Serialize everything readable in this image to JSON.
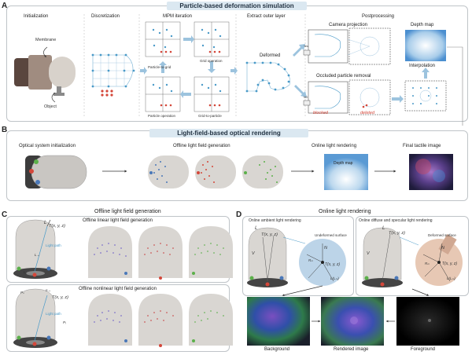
{
  "panels": {
    "a": {
      "letter": "A",
      "title": "Particle-based deformation simulation",
      "steps": [
        "Initialization",
        "Discretization",
        "MPM iteration",
        "Extract outer layer",
        "Postprocessing"
      ],
      "membrane": "Membrane",
      "object": "Object",
      "p2g": "Particle-to-grid",
      "grid_op": "Grid operation",
      "particle_op": "Particle operation",
      "g2p": "Grid-to-particle",
      "deformed": "Deformed",
      "camera_projection": "Camera projection",
      "occluded_removal": "Occluded particle removal",
      "depth_map": "Depth map",
      "interpolation": "Interpolation",
      "blocked": "blocked",
      "deleted": "deleted",
      "yes": "Yes",
      "no": "NO"
    },
    "b": {
      "letter": "B",
      "title": "Light-field-based optical rendering",
      "steps": [
        "Optical system initialization",
        "Offline light field generation",
        "Online light rendering",
        "Final tactile image"
      ],
      "depth_map": "Depth map"
    },
    "c": {
      "letter": "C",
      "title": "Offline light field generation",
      "linear": "Offline linear light field generation",
      "nonlinear": "Offline nonlinear light field generation",
      "L": "L",
      "T": "T(x, y, z)",
      "light_path": "Light path",
      "Lvec": "L→",
      "L1": "L₁",
      "n": "n→",
      "P": "Pᵢ",
      "Pn": "Pₙ"
    },
    "d": {
      "letter": "D",
      "title": "Online light rendering",
      "ambient": "Online ambient light rendering",
      "diffuse": "Online diffuse and specular light rendering",
      "undeformed": "Undeformed surface",
      "deformed": "Deformed surface",
      "T": "T(x, y, z)",
      "L": "L",
      "N": "N",
      "V": "V",
      "Rm": "Rₘ",
      "Lm": "Lₘ",
      "Lmt": "L(Lₘ)",
      "background": "Background",
      "rendered": "Rendered image",
      "foreground": "Foreground"
    }
  },
  "colors": {
    "banner": "#dbe8f1",
    "arrow": "#9cc3de",
    "particle_blue": "#4a78b8",
    "particle_red": "#d4473a",
    "particle_green": "#5bb04a",
    "frame": "#bfc4c8"
  }
}
